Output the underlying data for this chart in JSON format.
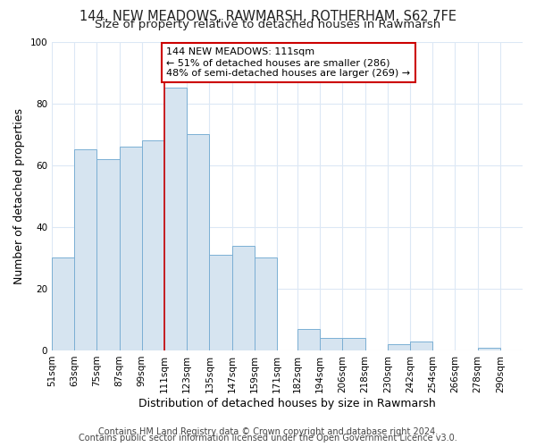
{
  "title1": "144, NEW MEADOWS, RAWMARSH, ROTHERHAM, S62 7FE",
  "title2": "Size of property relative to detached houses in Rawmarsh",
  "xlabel": "Distribution of detached houses by size in Rawmarsh",
  "ylabel": "Number of detached properties",
  "bin_labels": [
    "51sqm",
    "63sqm",
    "75sqm",
    "87sqm",
    "99sqm",
    "111sqm",
    "123sqm",
    "135sqm",
    "147sqm",
    "159sqm",
    "171sqm",
    "182sqm",
    "194sqm",
    "206sqm",
    "218sqm",
    "230sqm",
    "242sqm",
    "254sqm",
    "266sqm",
    "278sqm",
    "290sqm"
  ],
  "bin_left_edges": [
    51,
    63,
    75,
    87,
    99,
    111,
    123,
    135,
    147,
    159,
    171,
    182,
    194,
    206,
    218,
    230,
    242,
    254,
    266,
    278,
    290
  ],
  "counts": [
    30,
    65,
    62,
    66,
    68,
    85,
    70,
    31,
    34,
    30,
    0,
    7,
    4,
    4,
    0,
    2,
    3,
    0,
    0,
    1,
    0
  ],
  "bar_color": "#d6e4f0",
  "bar_edge_color": "#7bafd4",
  "marker_value": 111,
  "marker_color": "#cc0000",
  "ylim": [
    0,
    100
  ],
  "yticks": [
    0,
    20,
    40,
    60,
    80,
    100
  ],
  "annotation_text": "144 NEW MEADOWS: 111sqm\n← 51% of detached houses are smaller (286)\n48% of semi-detached houses are larger (269) →",
  "annotation_box_color": "#ffffff",
  "annotation_box_edge_color": "#cc0000",
  "footer1": "Contains HM Land Registry data © Crown copyright and database right 2024.",
  "footer2": "Contains public sector information licensed under the Open Government Licence v3.0.",
  "plot_bg_color": "#ffffff",
  "fig_bg_color": "#ffffff",
  "grid_color": "#dce8f5",
  "title_fontsize": 10.5,
  "subtitle_fontsize": 9.5,
  "axis_label_fontsize": 9,
  "tick_fontsize": 7.5,
  "annotation_fontsize": 8,
  "footer_fontsize": 7
}
